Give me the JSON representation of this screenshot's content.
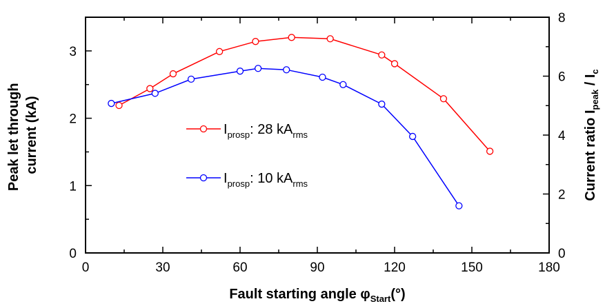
{
  "chart_data": {
    "type": "line",
    "xlabel": {
      "main": "Fault starting angle ",
      "symbol": "φ",
      "sub": "Start",
      "unit": "(°)"
    },
    "ylabel": {
      "line1": "Peak let through",
      "line2": "current (kA)"
    },
    "y2label": {
      "main": "Current ratio I",
      "sub1": "peak",
      "mid": " / I",
      "sub2": "c"
    },
    "xlim": [
      0,
      180
    ],
    "ylim": [
      0,
      3.5
    ],
    "y2lim": [
      0,
      8
    ],
    "xticks": [
      0,
      30,
      60,
      90,
      120,
      150,
      180
    ],
    "yticks": [
      0,
      1,
      2,
      3
    ],
    "y2ticks": [
      0,
      2,
      4,
      6,
      8
    ],
    "grid": false,
    "legend_position": "center-left",
    "series": [
      {
        "label_main": "I",
        "label_sub": "prosp",
        "label_value": ": 28 kA",
        "label_unit": "rms",
        "color": "#ff0000",
        "x": [
          13,
          25,
          34,
          52,
          66,
          80,
          95,
          115,
          120,
          139,
          157
        ],
        "y": [
          2.19,
          2.44,
          2.66,
          2.99,
          3.14,
          3.2,
          3.18,
          2.94,
          2.81,
          2.29,
          1.51
        ]
      },
      {
        "label_main": "I",
        "label_sub": "prosp",
        "label_value": ": 10 kA",
        "label_unit": "rms",
        "color": "#0000ff",
        "x": [
          10,
          27,
          41,
          60,
          67,
          78,
          92,
          100,
          115,
          127,
          145
        ],
        "y": [
          2.22,
          2.37,
          2.58,
          2.7,
          2.74,
          2.72,
          2.61,
          2.5,
          2.21,
          1.73,
          0.7
        ]
      }
    ]
  }
}
